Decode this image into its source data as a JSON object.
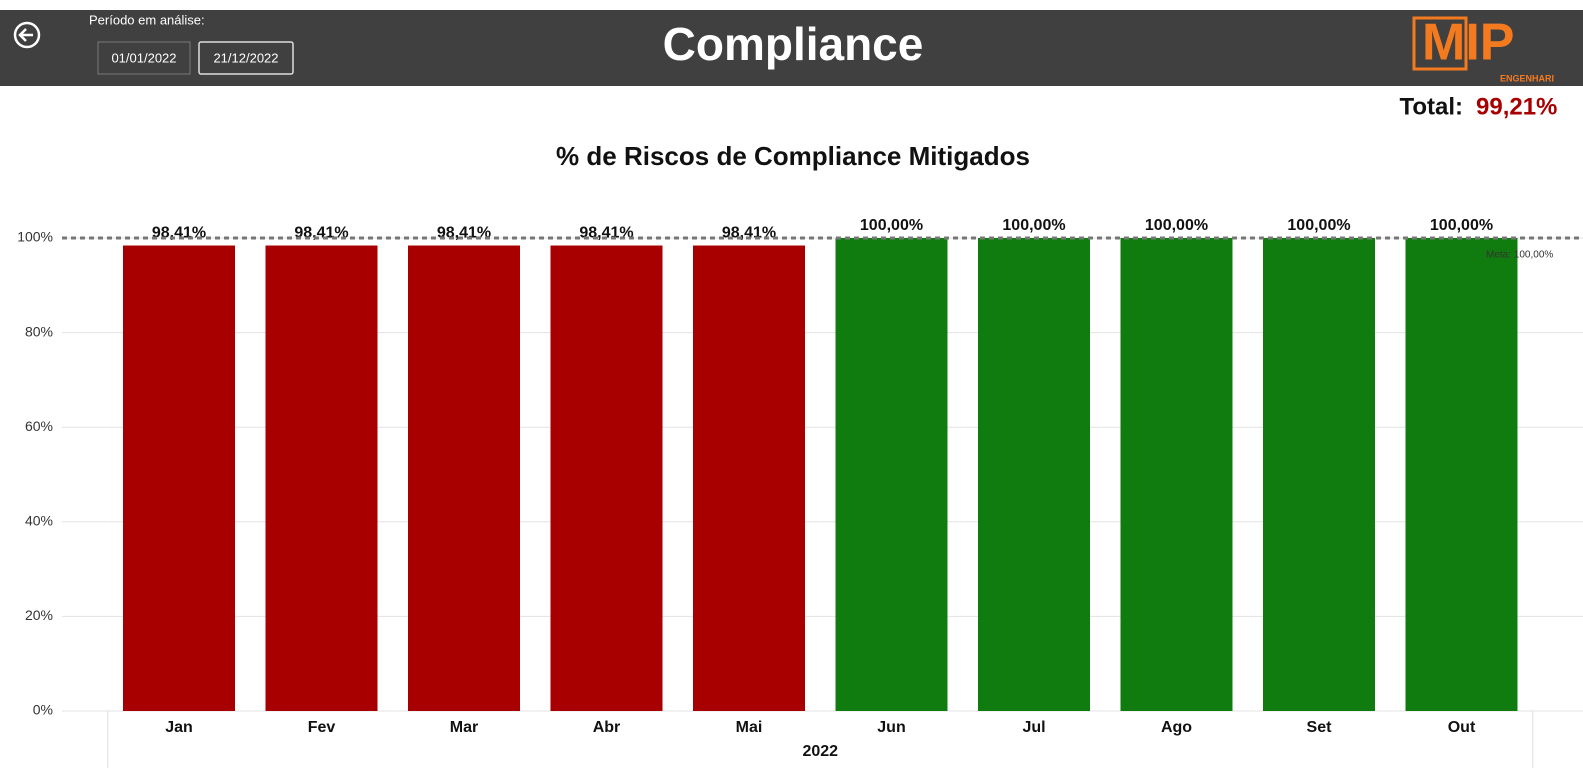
{
  "header": {
    "title": "Compliance",
    "period_label": "Período em análise:",
    "start_date": "01/01/2022",
    "end_date": "21/12/2022",
    "logo": "MIP",
    "logo_sub": "ENGENHARI"
  },
  "total": {
    "label": "Total:",
    "value": "99,21%"
  },
  "chart_data": {
    "type": "bar",
    "title": "% de Riscos de Compliance Mitigados",
    "categories": [
      "Jan",
      "Fev",
      "Mar",
      "Abr",
      "Mai",
      "Jun",
      "Jul",
      "Ago",
      "Set",
      "Out"
    ],
    "values": [
      98.41,
      98.41,
      98.41,
      98.41,
      98.41,
      100,
      100,
      100,
      100,
      100
    ],
    "value_labels": [
      "98,41%",
      "98,41%",
      "98,41%",
      "98,41%",
      "98,41%",
      "100,00%",
      "100,00%",
      "100,00%",
      "100,00%",
      "100,00%"
    ],
    "colors": [
      "#a80000",
      "#a80000",
      "#a80000",
      "#a80000",
      "#a80000",
      "#107c10",
      "#107c10",
      "#107c10",
      "#107c10",
      "#107c10"
    ],
    "xlabel": "2022",
    "ylim": [
      0,
      100
    ],
    "yticks": [
      {
        "value": 0,
        "label": "0%"
      },
      {
        "value": 20,
        "label": "20%"
      },
      {
        "value": 40,
        "label": "40%"
      },
      {
        "value": 60,
        "label": "60%"
      },
      {
        "value": 80,
        "label": "80%"
      },
      {
        "value": 100,
        "label": "100%"
      }
    ],
    "grid": true,
    "target": {
      "value": 100,
      "label": "Meta: 100,00%"
    }
  }
}
